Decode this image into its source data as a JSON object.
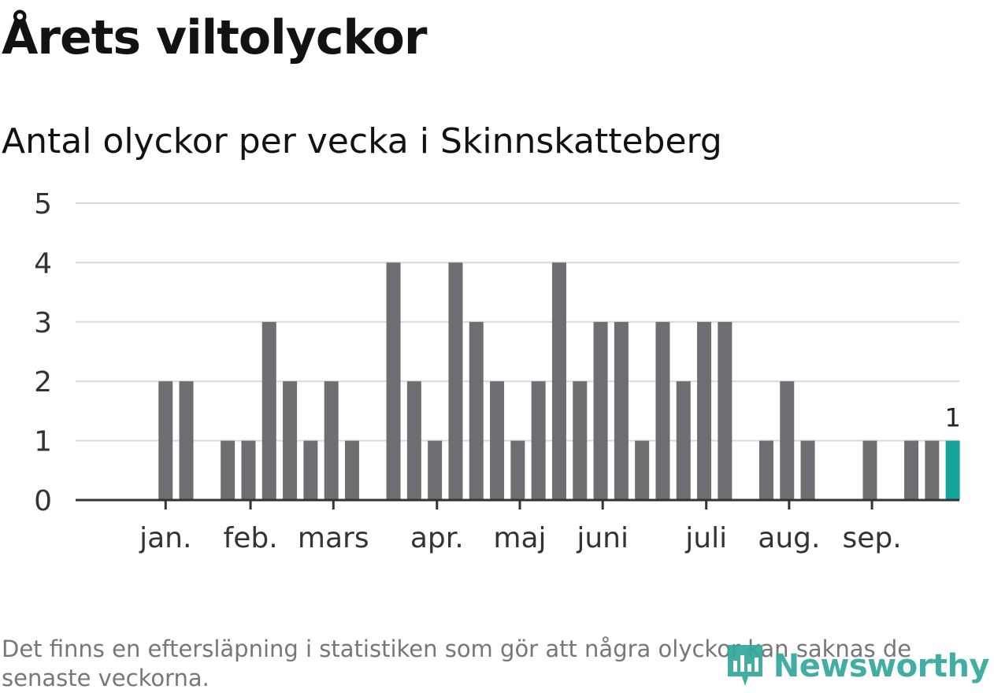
{
  "header": {
    "title": "Årets viltolyckor",
    "subtitle": "Antal olyckor per vecka i Skinnskatteberg"
  },
  "chart_data": {
    "type": "bar",
    "title": "Årets viltolyckor",
    "subtitle": "Antal olyckor per vecka i Skinnskatteberg",
    "ylim": [
      0,
      5
    ],
    "yticks": [
      0,
      1,
      2,
      3,
      4,
      5
    ],
    "grid": true,
    "week_slots": 41,
    "values": [
      0,
      0,
      2,
      2,
      0,
      1,
      1,
      3,
      2,
      1,
      2,
      1,
      0,
      4,
      2,
      1,
      4,
      3,
      2,
      1,
      2,
      4,
      2,
      3,
      3,
      1,
      3,
      2,
      3,
      3,
      0,
      1,
      2,
      1,
      0,
      0,
      1,
      0,
      1,
      1,
      1
    ],
    "highlight_index": 40,
    "highlight_label": "1",
    "month_ticks": [
      {
        "label": "jan.",
        "slot": 2.5
      },
      {
        "label": "feb.",
        "slot": 6.6
      },
      {
        "label": "mars",
        "slot": 10.6
      },
      {
        "label": "apr.",
        "slot": 15.6
      },
      {
        "label": "maj",
        "slot": 19.6
      },
      {
        "label": "juni",
        "slot": 23.6
      },
      {
        "label": "juli",
        "slot": 28.6
      },
      {
        "label": "aug.",
        "slot": 32.6
      },
      {
        "label": "sep.",
        "slot": 36.6
      }
    ],
    "colors": {
      "bar": "#6e6d72",
      "highlight": "#16a39a",
      "grid": "#d9d9d9",
      "axis": "#333333"
    }
  },
  "footer": {
    "note": "Det finns en eftersläpning i statistiken som gör att några olyckor kan saknas de senaste veckorna.",
    "brand": "Newsworthy"
  }
}
